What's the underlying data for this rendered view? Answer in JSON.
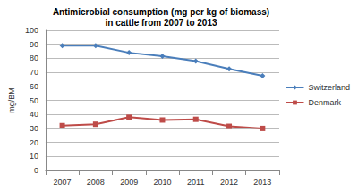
{
  "chart_data": {
    "type": "line",
    "title": "Antimicrobial consumption (mg per kg of biomass)\nin cattle from 2007 to 2013",
    "y_label": "mg/BM",
    "categories": [
      "2007",
      "2008",
      "2009",
      "2010",
      "2011",
      "2012",
      "2013"
    ],
    "series": [
      {
        "name": "Switzerland",
        "color": "#4a7ebb",
        "marker": "diamond",
        "values": [
          89,
          89,
          84,
          81.5,
          78,
          72.5,
          67.5
        ]
      },
      {
        "name": "Denmark",
        "color": "#be4b48",
        "marker": "square",
        "values": [
          32,
          33,
          38,
          36,
          36.5,
          31.5,
          30
        ]
      }
    ],
    "ylim": [
      0,
      100
    ],
    "yticks": [
      0,
      10,
      20,
      30,
      40,
      50,
      60,
      70,
      80,
      90,
      100
    ],
    "grid": true,
    "legend": "right"
  }
}
